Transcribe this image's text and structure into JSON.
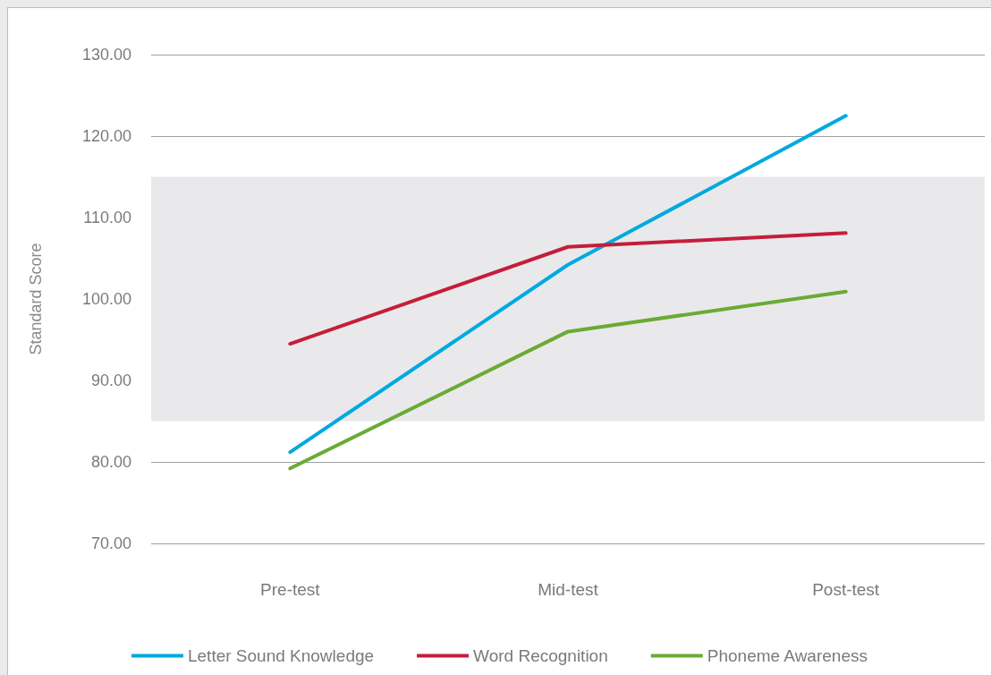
{
  "chart_data": {
    "type": "line",
    "ylabel": "Standard Score",
    "categories": [
      "Pre-test",
      "Mid-test",
      "Post-test"
    ],
    "series": [
      {
        "name": "Letter Sound Knowledge",
        "color": "#00a9e0",
        "values": [
          81.2,
          104.2,
          122.5
        ]
      },
      {
        "name": "Word Recognition",
        "color": "#c41e3a",
        "values": [
          94.5,
          106.4,
          108.1
        ]
      },
      {
        "name": "Phoneme Awareness",
        "color": "#6aab34",
        "values": [
          79.2,
          96.0,
          100.9
        ]
      }
    ],
    "ylim": [
      70,
      130
    ],
    "yticks": [
      {
        "value": 70,
        "label": "70.00"
      },
      {
        "value": 80,
        "label": "80.00"
      },
      {
        "value": 90,
        "label": "90.00"
      },
      {
        "value": 100,
        "label": "100.00"
      },
      {
        "value": 110,
        "label": "110.00"
      },
      {
        "value": 120,
        "label": "120.00"
      },
      {
        "value": 130,
        "label": "130.00"
      }
    ],
    "bands": [
      {
        "axis": "y",
        "from": 85,
        "to": 115,
        "color": "#e9e9ec"
      }
    ],
    "grid": "y",
    "legend": "bottom",
    "marker": "none",
    "line_style": "solid"
  }
}
